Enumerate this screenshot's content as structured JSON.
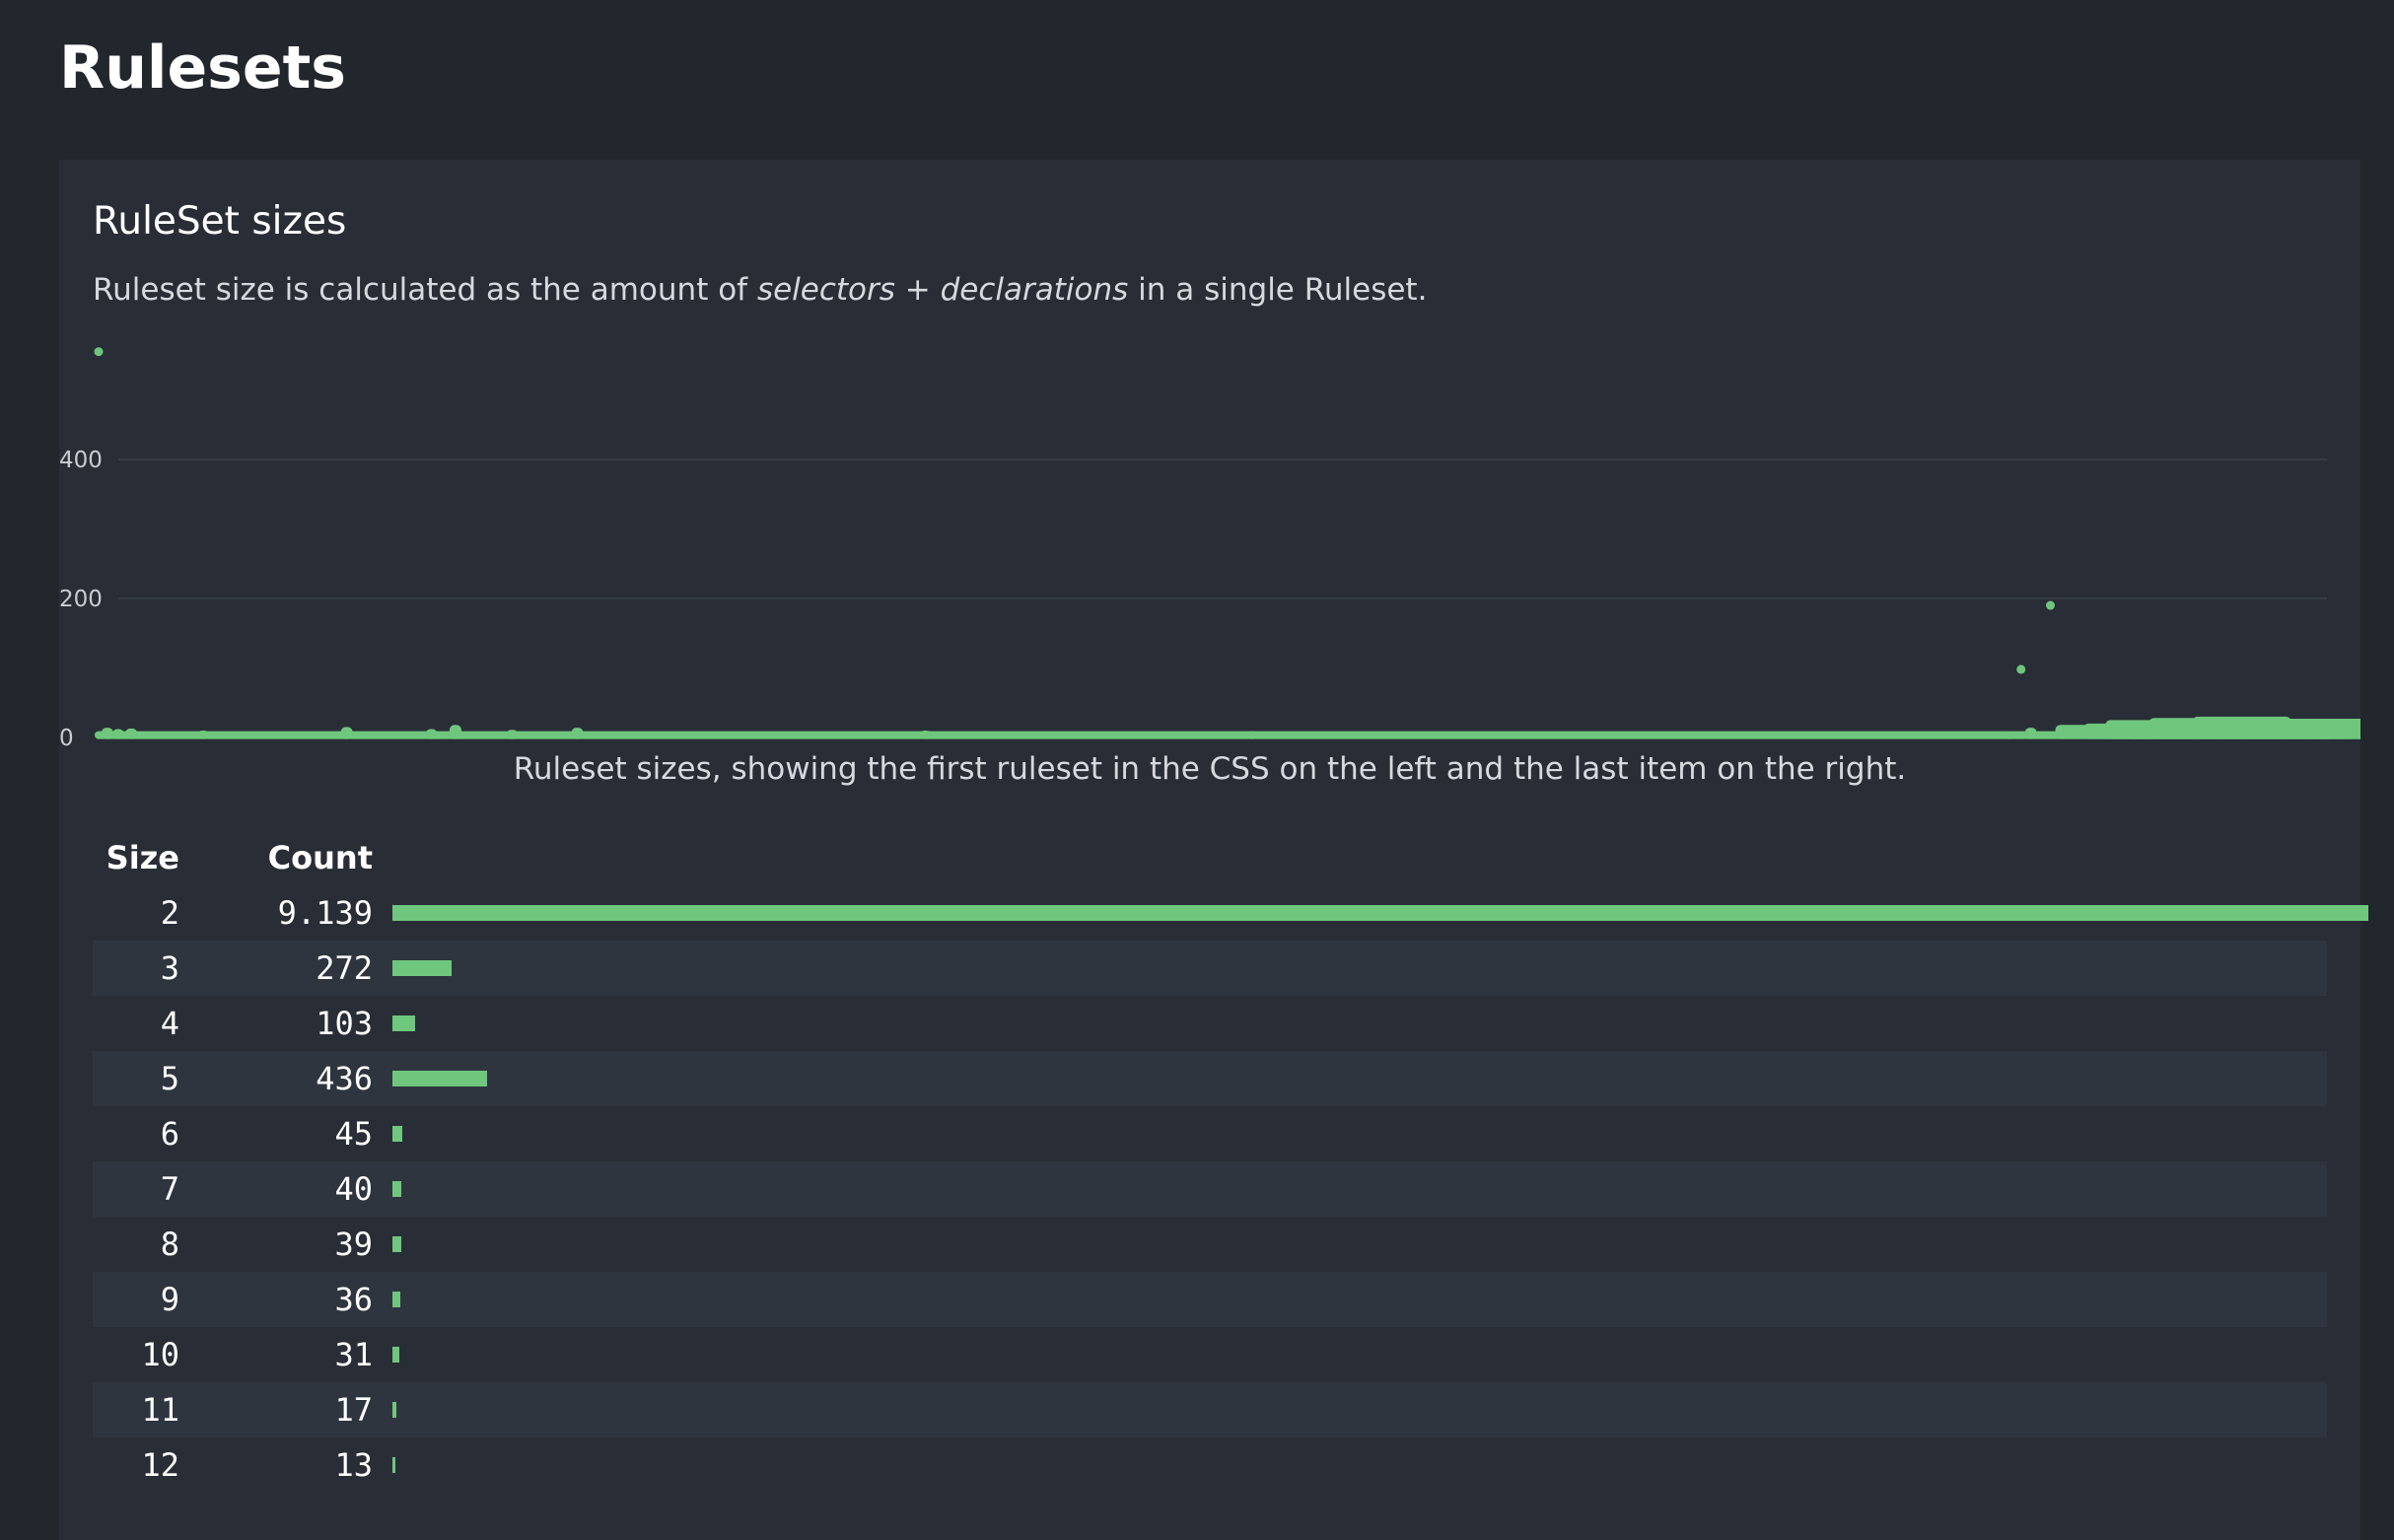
{
  "page_title": "Rulesets",
  "section": {
    "title": "RuleSet sizes",
    "description_pre": "Ruleset size is calculated as the amount of ",
    "description_em": "selectors + declarations",
    "description_post": " in a single Ruleset.",
    "caption": "Ruleset sizes, showing the first ruleset in the CSS on the left and the last item on the right."
  },
  "colors": {
    "accent": "#6fc77d",
    "background": "#22272e",
    "panel": "#292e36"
  },
  "chart_data": {
    "type": "scatter",
    "y_ticks": [
      "0",
      "200",
      "400"
    ],
    "ylim": [
      0,
      560
    ],
    "xlim": [
      0,
      10250
    ],
    "grid": true,
    "baseline_size": 2,
    "points": [
      [
        0,
        555
      ],
      [
        40,
        14
      ],
      [
        90,
        12
      ],
      [
        150,
        13
      ],
      [
        480,
        10
      ],
      [
        1140,
        15
      ],
      [
        1530,
        12
      ],
      [
        1640,
        18
      ],
      [
        1900,
        11
      ],
      [
        2200,
        14
      ],
      [
        3800,
        10
      ],
      [
        5300,
        9
      ],
      [
        8780,
        8
      ],
      [
        8835,
        98
      ],
      [
        8880,
        14
      ],
      [
        8970,
        190
      ],
      [
        9020,
        18
      ],
      [
        9150,
        20
      ],
      [
        9250,
        25
      ],
      [
        9350,
        22
      ],
      [
        9450,
        28
      ],
      [
        9550,
        26
      ],
      [
        9650,
        30
      ],
      [
        9750,
        22
      ],
      [
        9850,
        8
      ],
      [
        9950,
        24
      ],
      [
        10050,
        27
      ],
      [
        10150,
        26
      ],
      [
        10230,
        22
      ]
    ]
  },
  "table": {
    "headers": {
      "size": "Size",
      "count": "Count"
    },
    "max_count": 9139,
    "rows": [
      {
        "size": "2",
        "count": "9.139",
        "value": 9139
      },
      {
        "size": "3",
        "count": "272",
        "value": 272
      },
      {
        "size": "4",
        "count": "103",
        "value": 103
      },
      {
        "size": "5",
        "count": "436",
        "value": 436
      },
      {
        "size": "6",
        "count": "45",
        "value": 45
      },
      {
        "size": "7",
        "count": "40",
        "value": 40
      },
      {
        "size": "8",
        "count": "39",
        "value": 39
      },
      {
        "size": "9",
        "count": "36",
        "value": 36
      },
      {
        "size": "10",
        "count": "31",
        "value": 31
      },
      {
        "size": "11",
        "count": "17",
        "value": 17
      },
      {
        "size": "12",
        "count": "13",
        "value": 13
      }
    ]
  }
}
